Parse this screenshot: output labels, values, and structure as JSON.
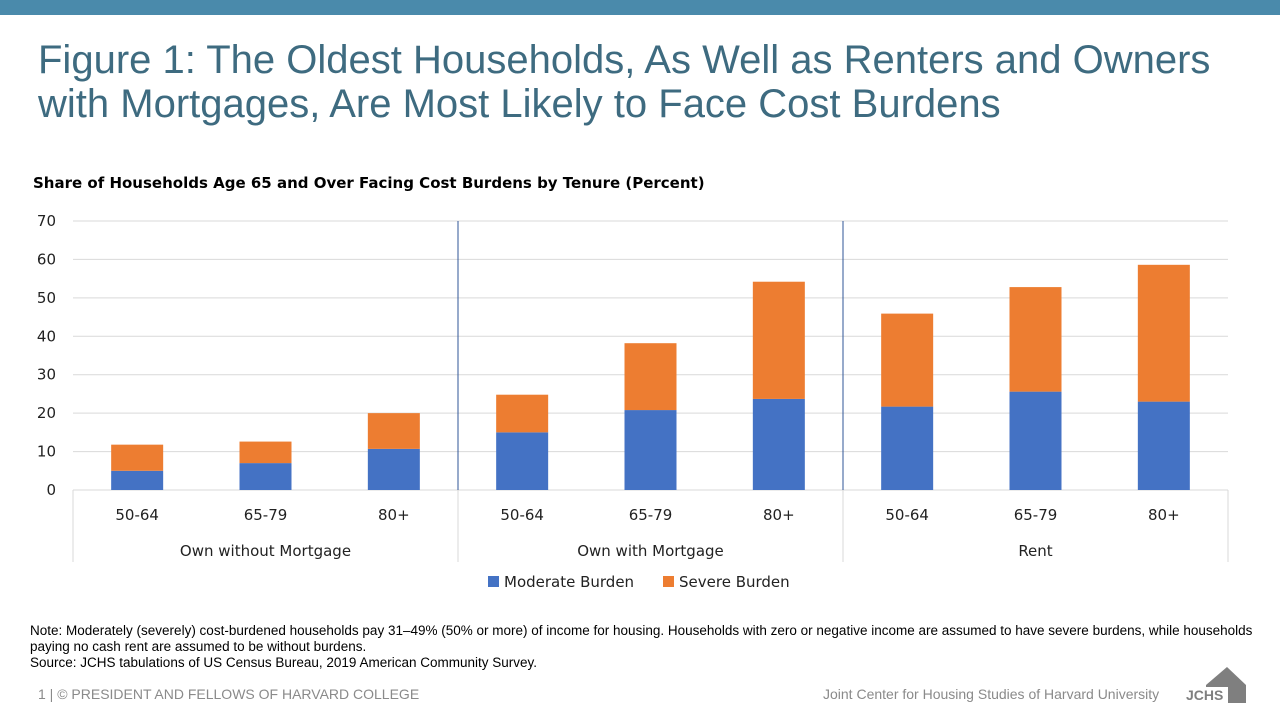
{
  "slide": {
    "title": "Figure 1: The Oldest Households, As Well as Renters and Owners with Mortgages, Are Most Likely to Face Cost Burdens",
    "note": "Note: Moderately (severely) cost-burdened households pay 31–49% (50% or more) of income for housing. Households with zero or negative income are assumed to have severe burdens, while households paying no cash rent are assumed to be without burdens.",
    "source": "Source: JCHS tabulations of US Census Bureau, 2019 American Community Survey.",
    "footer_left": "1 | © PRESIDENT AND FELLOWS OF HARVARD COLLEGE",
    "footer_right": "Joint Center for Housing Studies of Harvard University",
    "logo_text": "JCHS"
  },
  "colors": {
    "band": "#4a8aab",
    "title": "#3e6b80",
    "moderate": "#4472c4",
    "severe": "#ed7d31",
    "grid": "#d9d9d9",
    "divider": "#2f5597"
  },
  "chart_data": {
    "type": "bar",
    "stacked": true,
    "title": "Share of Households  Age 65 and Over Facing Cost Burdens by Tenure (Percent)",
    "groups": [
      {
        "label": "Own without Mortgage",
        "categories": [
          "50-64",
          "65-79",
          "80+"
        ]
      },
      {
        "label": "Own with Mortgage",
        "categories": [
          "50-64",
          "65-79",
          "80+"
        ]
      },
      {
        "label": "Rent",
        "categories": [
          "50-64",
          "65-79",
          "80+"
        ]
      }
    ],
    "categories": [
      "50-64",
      "65-79",
      "80+",
      "50-64",
      "65-79",
      "80+",
      "50-64",
      "65-79",
      "80+"
    ],
    "series": [
      {
        "name": "Moderate Burden",
        "color": "#4472c4",
        "values": [
          5.0,
          7.0,
          10.7,
          15.0,
          20.8,
          23.7,
          21.7,
          25.6,
          23.0
        ]
      },
      {
        "name": "Severe Burden",
        "color": "#ed7d31",
        "values": [
          6.8,
          5.6,
          9.3,
          9.8,
          17.4,
          30.5,
          24.2,
          27.2,
          35.6
        ]
      }
    ],
    "ylim": [
      0,
      70
    ],
    "yticks": [
      "0",
      "10",
      "20",
      "30",
      "40",
      "50",
      "60",
      "70"
    ],
    "grid": true,
    "legend": "bottom"
  }
}
